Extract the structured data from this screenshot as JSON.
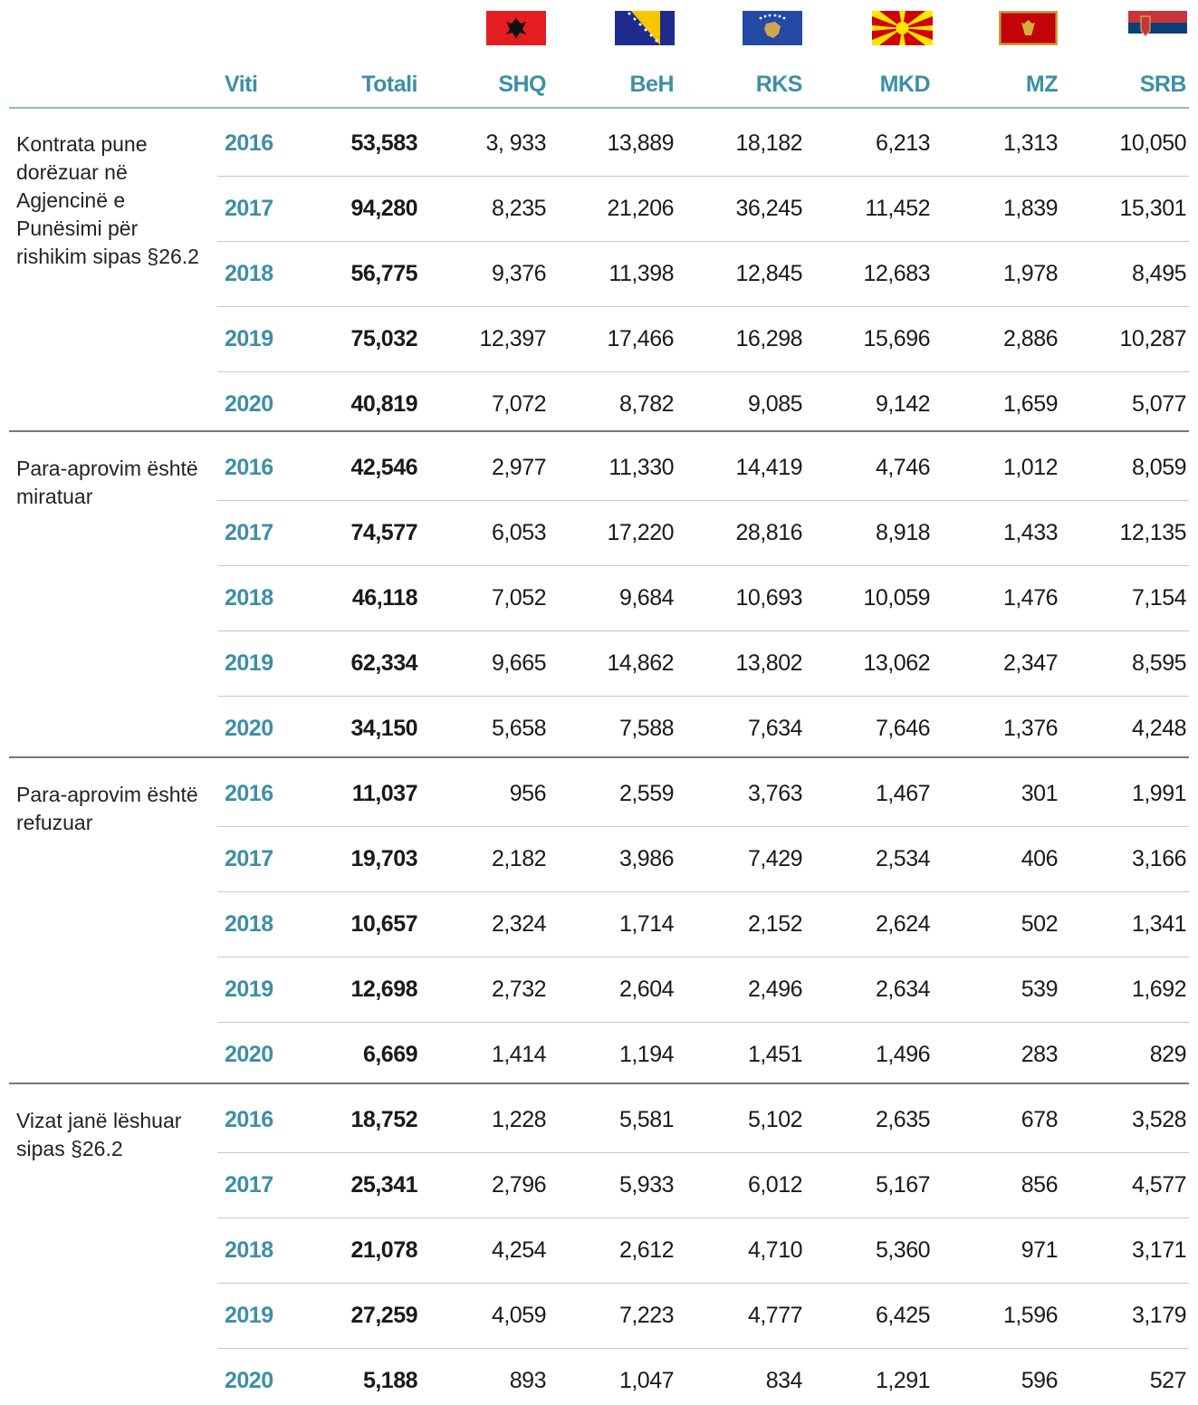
{
  "table": {
    "header": [
      "Viti",
      "Totali",
      "SHQ",
      "BeH",
      "RKS",
      "MKD",
      "MZ",
      "SRB"
    ],
    "groups": [
      {
        "label": "Kontrata pune dorëzuar në Agjencinë e Punësimi për rishikim sipas §26.2",
        "rows": [
          [
            "2016",
            "53,583",
            "3, 933",
            "13,889",
            "18,182",
            "6,213",
            "1,313",
            "10,050"
          ],
          [
            "2017",
            "94,280",
            "8,235",
            "21,206",
            "36,245",
            "11,452",
            "1,839",
            "15,301"
          ],
          [
            "2018",
            "56,775",
            "9,376",
            "11,398",
            "12,845",
            "12,683",
            "1,978",
            "8,495"
          ],
          [
            "2019",
            "75,032",
            "12,397",
            "17,466",
            "16,298",
            "15,696",
            "2,886",
            "10,287"
          ],
          [
            "2020",
            "40,819",
            "7,072",
            "8,782",
            "9,085",
            "9,142",
            "1,659",
            "5,077"
          ]
        ]
      },
      {
        "label": "Para-aprovim është miratuar",
        "rows": [
          [
            "2016",
            "42,546",
            "2,977",
            "11,330",
            "14,419",
            "4,746",
            "1,012",
            "8,059"
          ],
          [
            "2017",
            "74,577",
            "6,053",
            "17,220",
            "28,816",
            "8,918",
            "1,433",
            "12,135"
          ],
          [
            "2018",
            "46,118",
            "7,052",
            "9,684",
            "10,693",
            "10,059",
            "1,476",
            "7,154"
          ],
          [
            "2019",
            "62,334",
            "9,665",
            "14,862",
            "13,802",
            "13,062",
            "2,347",
            "8,595"
          ],
          [
            "2020",
            "34,150",
            "5,658",
            "7,588",
            "7,634",
            "7,646",
            "1,376",
            "4,248"
          ]
        ]
      },
      {
        "label": "Para-aprovim është refuzuar",
        "rows": [
          [
            "2016",
            "11,037",
            "956",
            "2,559",
            "3,763",
            "1,467",
            "301",
            "1,991"
          ],
          [
            "2017",
            "19,703",
            "2,182",
            "3,986",
            "7,429",
            "2,534",
            "406",
            "3,166"
          ],
          [
            "2018",
            "10,657",
            "2,324",
            "1,714",
            "2,152",
            "2,624",
            "502",
            "1,341"
          ],
          [
            "2019",
            "12,698",
            "2,732",
            "2,604",
            "2,496",
            "2,634",
            "539",
            "1,692"
          ],
          [
            "2020",
            "6,669",
            "1,414",
            "1,194",
            "1,451",
            "1,496",
            "283",
            "829"
          ]
        ]
      },
      {
        "label": "Vizat janë lëshuar sipas §26.2",
        "rows": [
          [
            "2016",
            "18,752",
            "1,228",
            "5,581",
            "5,102",
            "2,635",
            "678",
            "3,528"
          ],
          [
            "2017",
            "25,341",
            "2,796",
            "5,933",
            "6,012",
            "5,167",
            "856",
            "4,577"
          ],
          [
            "2018",
            "21,078",
            "4,254",
            "2,612",
            "4,710",
            "5,360",
            "971",
            "3,171"
          ],
          [
            "2019",
            "27,259",
            "4,059",
            "7,223",
            "4,777",
            "6,425",
            "1,596",
            "3,179"
          ],
          [
            "2020",
            "5,188",
            "893",
            "1,047",
            "834",
            "1,291",
            "596",
            "527"
          ]
        ]
      }
    ]
  }
}
